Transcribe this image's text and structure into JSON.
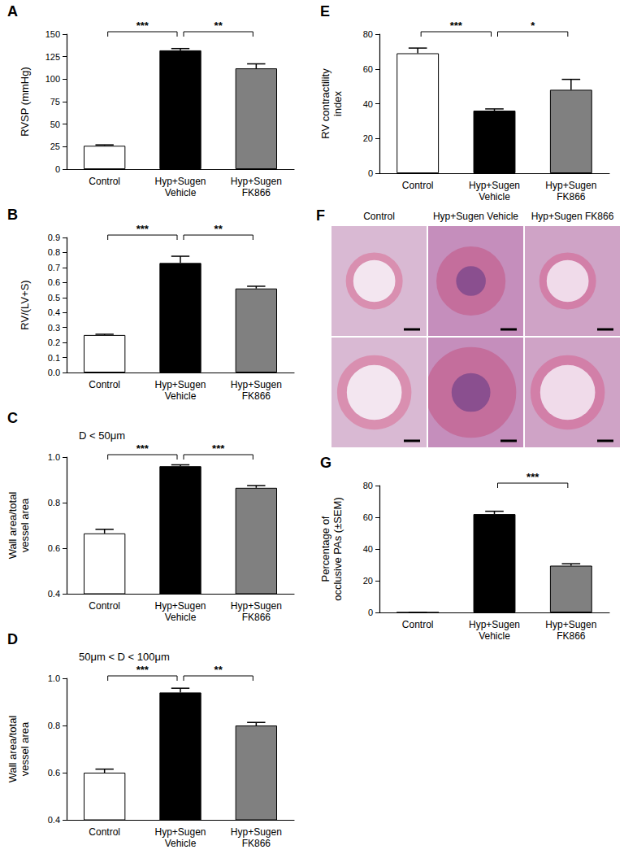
{
  "chart_data": [
    {
      "type": "bar",
      "title": "A",
      "categories": [
        "Control",
        "Hyp+Sugen\nVehicle",
        "Hyp+Sugen\nFK866"
      ],
      "values": [
        26,
        132,
        112
      ],
      "errors": [
        1,
        2,
        5
      ],
      "colors": [
        "#ffffff",
        "#000000",
        "#808080"
      ],
      "ylabel": "RVSP (mmHg)",
      "ylim": [
        0,
        150
      ],
      "yticks": [
        0,
        25,
        50,
        75,
        100,
        125,
        150
      ],
      "grid": false,
      "annotations": [
        {
          "from": 0,
          "to": 1,
          "text": "***"
        },
        {
          "from": 1,
          "to": 2,
          "text": "**"
        }
      ]
    },
    {
      "type": "bar",
      "title": "B",
      "categories": [
        "Control",
        "Hyp+Sugen\nVehicle",
        "Hyp+Sugen\nFK866"
      ],
      "values": [
        0.25,
        0.73,
        0.56
      ],
      "errors": [
        0.005,
        0.045,
        0.015
      ],
      "colors": [
        "#ffffff",
        "#000000",
        "#808080"
      ],
      "ylabel": "RV/(LV+S)",
      "ylim": [
        0,
        0.9
      ],
      "yticks": [
        {
          "value": 0,
          "label": "0.0"
        },
        0.1,
        0.2,
        0.3,
        0.4,
        0.5,
        0.6,
        0.7,
        0.8,
        0.9
      ],
      "grid": false,
      "annotations": [
        {
          "from": 0,
          "to": 1,
          "text": "***"
        },
        {
          "from": 1,
          "to": 2,
          "text": "**"
        }
      ]
    },
    {
      "type": "bar",
      "title": "C",
      "subtitle": "D < 50μm",
      "categories": [
        "Control",
        "Hyp+Sugen\nVehicle",
        "Hyp+Sugen\nFK866"
      ],
      "values": [
        0.665,
        0.96,
        0.865
      ],
      "errors": [
        0.018,
        0.006,
        0.01
      ],
      "colors": [
        "#ffffff",
        "#000000",
        "#808080"
      ],
      "ylabel": "Wall area/total\nvessel area",
      "ylim": [
        0.4,
        1.0
      ],
      "yticks": [
        0.4,
        0.6,
        0.8,
        {
          "value": 1.0,
          "label": "1.0"
        }
      ],
      "grid": false,
      "annotations": [
        {
          "from": 0,
          "to": 1,
          "text": "***"
        },
        {
          "from": 1,
          "to": 2,
          "text": "***"
        }
      ]
    },
    {
      "type": "bar",
      "title": "D",
      "subtitle": "50μm < D < 100μm",
      "categories": [
        "Control",
        "Hyp+Sugen\nVehicle",
        "Hyp+Sugen\nFK866"
      ],
      "values": [
        0.6,
        0.94,
        0.8
      ],
      "errors": [
        0.015,
        0.018,
        0.013
      ],
      "colors": [
        "#ffffff",
        "#000000",
        "#808080"
      ],
      "ylabel": "Wall area/total\nvessel area",
      "ylim": [
        0.4,
        1.0
      ],
      "yticks": [
        0.4,
        0.6,
        0.8,
        {
          "value": 1.0,
          "label": "1.0"
        }
      ],
      "grid": false,
      "annotations": [
        {
          "from": 0,
          "to": 1,
          "text": "***"
        },
        {
          "from": 1,
          "to": 2,
          "text": "**"
        }
      ]
    },
    {
      "type": "bar",
      "title": "E",
      "categories": [
        "Control",
        "Hyp+Sugen\nVehicle",
        "Hyp+Sugen\nFK866"
      ],
      "values": [
        69,
        36,
        48
      ],
      "errors": [
        3,
        1,
        6
      ],
      "colors": [
        "#ffffff",
        "#000000",
        "#808080"
      ],
      "ylabel": "RV contractility\nindex",
      "ylim": [
        0,
        80
      ],
      "yticks": [
        0,
        20,
        40,
        60,
        80
      ],
      "grid": false,
      "annotations": [
        {
          "from": 0,
          "to": 1,
          "text": "***"
        },
        {
          "from": 1,
          "to": 2,
          "text": "*"
        }
      ]
    },
    {
      "type": "bar",
      "title": "G",
      "categories": [
        "Control",
        "Hyp+Sugen\nVehicle",
        "Hyp+Sugen\nFK866"
      ],
      "values": [
        0,
        62,
        29.5
      ],
      "errors": [
        0,
        1.8,
        1.2
      ],
      "colors": [
        "#ffffff",
        "#000000",
        "#808080"
      ],
      "ylabel": "Percentage of\nocclusive PAs (±SEM)",
      "ylim": [
        0,
        80
      ],
      "yticks": [
        0,
        20,
        40,
        60,
        80
      ],
      "grid": false,
      "annotations": [
        {
          "from": 1,
          "to": 2,
          "text": "***"
        }
      ]
    }
  ],
  "images": {
    "title": "F",
    "columns": [
      "Control",
      "Hyp+Sugen Vehicle",
      "Hyp+Sugen FK866"
    ]
  }
}
